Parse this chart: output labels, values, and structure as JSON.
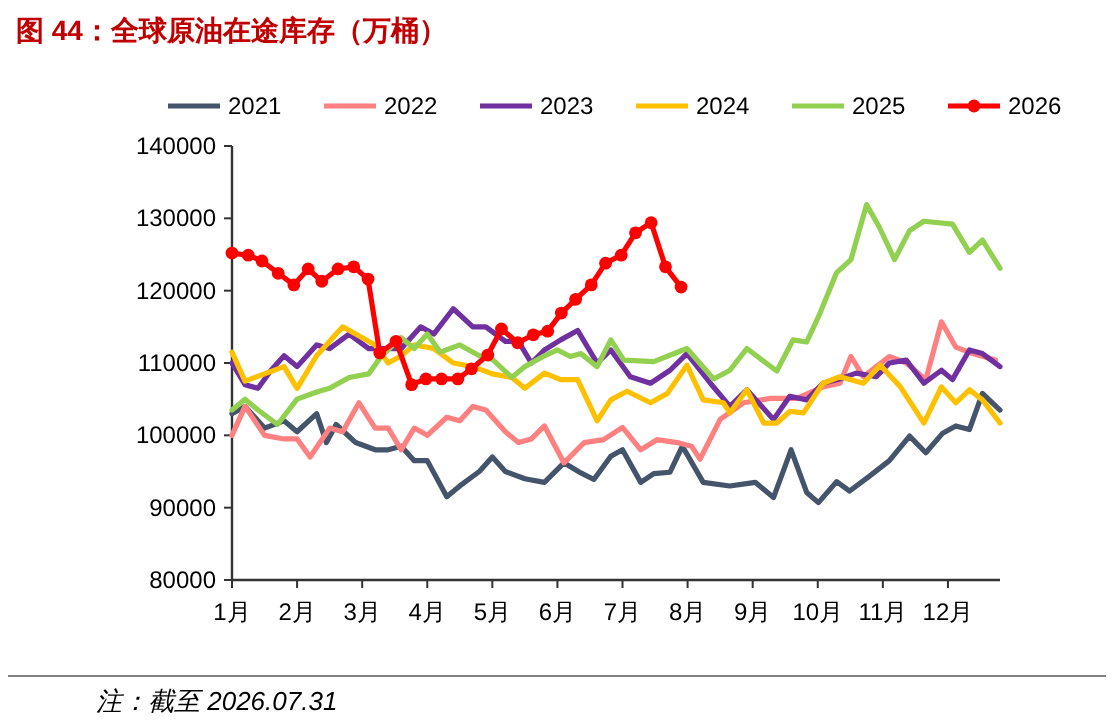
{
  "chart_data": {
    "type": "line",
    "title": "图 44：全球原油在途库存（万桶）",
    "annotations": [
      "注：截至 2026.07.31"
    ],
    "xlim": [
      1,
      12.8
    ],
    "xticks": [
      {
        "value": 1,
        "label": "1月"
      },
      {
        "value": 2,
        "label": "2月"
      },
      {
        "value": 3,
        "label": "3月"
      },
      {
        "value": 4,
        "label": "4月"
      },
      {
        "value": 5,
        "label": "5月"
      },
      {
        "value": 6,
        "label": "6月"
      },
      {
        "value": 7,
        "label": "7月"
      },
      {
        "value": 8,
        "label": "8月"
      },
      {
        "value": 9,
        "label": "9月"
      },
      {
        "value": 10,
        "label": "10月"
      },
      {
        "value": 11,
        "label": "11月"
      },
      {
        "value": 12,
        "label": "12月"
      }
    ],
    "ylim": [
      80000,
      140000
    ],
    "yticks": [
      80000,
      90000,
      100000,
      110000,
      120000,
      130000,
      140000
    ],
    "grid": false,
    "legend": "top",
    "line_style": "solid",
    "series": [
      {
        "name": "2021",
        "color": "#44546a",
        "marker": "none",
        "x": [
          1,
          1.2,
          1.5,
          1.8,
          2,
          2.3,
          2.45,
          2.6,
          2.9,
          3.2,
          3.4,
          3.6,
          3.8,
          4,
          4.3,
          4.5,
          4.8,
          5,
          5.2,
          5.5,
          5.8,
          6.1,
          6.36,
          6.56,
          6.82,
          7,
          7.28,
          7.48,
          7.73,
          7.92,
          8.24,
          8.65,
          9.04,
          9.32,
          9.59,
          9.83,
          10.01,
          10.29,
          10.49,
          10.8,
          11.1,
          11.41,
          11.66,
          11.92,
          12.12,
          12.33,
          12.53,
          12.8
        ],
        "values": [
          103000,
          104000,
          101000,
          102000,
          100500,
          103000,
          99000,
          101500,
          99000,
          98000,
          98000,
          98500,
          96500,
          96500,
          91500,
          93000,
          95000,
          97000,
          95000,
          94000,
          93500,
          96200,
          94800,
          93900,
          97100,
          98000,
          93500,
          94700,
          94900,
          98500,
          93500,
          93000,
          93500,
          91400,
          98000,
          92100,
          90700,
          93600,
          92300,
          94400,
          96500,
          99900,
          97600,
          100300,
          101300,
          100800,
          105800,
          103500
        ]
      },
      {
        "name": "2022",
        "color": "#ff8080",
        "marker": "none",
        "x": [
          1,
          1.2,
          1.5,
          1.8,
          2,
          2.2,
          2.5,
          2.7,
          2.95,
          3.2,
          3.4,
          3.6,
          3.8,
          4,
          4.3,
          4.5,
          4.7,
          4.9,
          5.2,
          5.4,
          5.6,
          5.8,
          6.1,
          6.41,
          6.71,
          7,
          7.28,
          7.53,
          7.84,
          8.06,
          8.19,
          8.5,
          8.86,
          9.27,
          9.68,
          10.08,
          10.34,
          10.51,
          10.7,
          10.9,
          11.1,
          11.36,
          11.66,
          11.9,
          12.12,
          12.38,
          12.73
        ],
        "values": [
          100000,
          104000,
          100000,
          99500,
          99500,
          97000,
          101000,
          100500,
          104500,
          101000,
          101000,
          98000,
          101000,
          100000,
          102500,
          102000,
          104000,
          103500,
          100500,
          99000,
          99500,
          101300,
          96200,
          99000,
          99400,
          101100,
          98000,
          99400,
          99000,
          98500,
          96700,
          102200,
          104500,
          105100,
          105100,
          106700,
          107200,
          110900,
          108100,
          109500,
          110900,
          110000,
          107700,
          115700,
          112200,
          111300,
          110400
        ]
      },
      {
        "name": "2023",
        "color": "#7030a0",
        "marker": "none",
        "x": [
          1,
          1.2,
          1.4,
          1.6,
          1.8,
          2,
          2.3,
          2.5,
          2.8,
          3.1,
          3.3,
          3.6,
          3.9,
          4.1,
          4.4,
          4.7,
          4.9,
          5.2,
          5.4,
          5.6,
          5.8,
          6.05,
          6.31,
          6.61,
          6.82,
          7.12,
          7.43,
          7.73,
          7.99,
          8.35,
          8.65,
          8.91,
          9.32,
          9.57,
          9.83,
          10.08,
          10.34,
          10.59,
          10.9,
          11.1,
          11.36,
          11.63,
          11.9,
          12.07,
          12.33,
          12.53,
          12.8
        ],
        "values": [
          110000,
          107000,
          106500,
          109000,
          111000,
          109500,
          112500,
          112000,
          114000,
          112000,
          112000,
          112000,
          115000,
          114000,
          117500,
          115000,
          115000,
          113000,
          113000,
          110000,
          111800,
          113200,
          114500,
          110000,
          111800,
          108100,
          107200,
          109000,
          111300,
          107200,
          104000,
          106300,
          102200,
          105400,
          104900,
          107200,
          107800,
          108600,
          108100,
          110000,
          110400,
          107200,
          109000,
          107700,
          111800,
          111300,
          109500
        ]
      },
      {
        "name": "2024",
        "color": "#ffc000",
        "marker": "none",
        "x": [
          1,
          1.2,
          1.5,
          1.8,
          2,
          2.3,
          2.7,
          2.9,
          3.2,
          3.4,
          3.6,
          3.8,
          4.1,
          4.4,
          4.7,
          5,
          5.3,
          5.5,
          5.8,
          6.05,
          6.31,
          6.61,
          6.82,
          7.07,
          7.43,
          7.69,
          7.99,
          8.24,
          8.55,
          8.65,
          8.91,
          9.17,
          9.37,
          9.57,
          9.78,
          10.08,
          10.34,
          10.7,
          10.96,
          11.27,
          11.63,
          11.9,
          12.12,
          12.33,
          12.53,
          12.8
        ],
        "values": [
          111500,
          107500,
          108500,
          109500,
          106500,
          111000,
          115000,
          114000,
          112500,
          110000,
          111000,
          112500,
          112000,
          110000,
          109500,
          108500,
          108000,
          106500,
          108600,
          107700,
          107700,
          102000,
          104900,
          106100,
          104500,
          105800,
          109700,
          104900,
          104500,
          103100,
          106300,
          101700,
          101700,
          103300,
          103100,
          107200,
          108100,
          107200,
          109700,
          106700,
          101700,
          106700,
          104500,
          106300,
          104900,
          101700
        ]
      },
      {
        "name": "2025",
        "color": "#92d050",
        "marker": "none",
        "x": [
          1,
          1.2,
          1.4,
          1.7,
          2,
          2.3,
          2.5,
          2.8,
          3.1,
          3.3,
          3.6,
          3.8,
          4,
          4.2,
          4.5,
          4.8,
          5,
          5.3,
          5.5,
          5.8,
          6,
          6.2,
          6.36,
          6.61,
          6.82,
          7.02,
          7.48,
          7.99,
          8.4,
          8.65,
          8.91,
          9.37,
          9.62,
          9.83,
          10.03,
          10.29,
          10.51,
          10.75,
          10.95,
          11.18,
          11.41,
          11.63,
          12.07,
          12.33,
          12.53,
          12.8
        ],
        "values": [
          103500,
          105000,
          103500,
          101500,
          105000,
          106000,
          106500,
          108000,
          108500,
          111000,
          113500,
          112000,
          114000,
          111500,
          112500,
          111000,
          110500,
          108000,
          109500,
          111000,
          111800,
          110900,
          111300,
          109500,
          113200,
          110400,
          110200,
          112000,
          107800,
          109000,
          112000,
          108900,
          113200,
          112900,
          116800,
          122500,
          124300,
          131900,
          128700,
          124300,
          128300,
          129600,
          129200,
          125300,
          127000,
          123100
        ]
      },
      {
        "name": "2026",
        "color": "#ff0000",
        "marker": "circle",
        "x": [
          1,
          1.25,
          1.46,
          1.71,
          1.95,
          2.17,
          2.38,
          2.63,
          2.87,
          3.09,
          3.27,
          3.52,
          3.76,
          3.98,
          4.22,
          4.47,
          4.68,
          4.93,
          5.14,
          5.39,
          5.63,
          5.85,
          6.06,
          6.28,
          6.52,
          6.74,
          6.98,
          7.2,
          7.44,
          7.66,
          7.9
        ],
        "values": [
          125200,
          124900,
          124100,
          122400,
          120800,
          123000,
          121300,
          123000,
          123300,
          121600,
          111400,
          113000,
          107000,
          107800,
          107800,
          107800,
          109200,
          111100,
          114700,
          112800,
          113900,
          114400,
          116900,
          118800,
          120800,
          123800,
          124900,
          128000,
          129400,
          123300,
          120500
        ]
      }
    ]
  }
}
